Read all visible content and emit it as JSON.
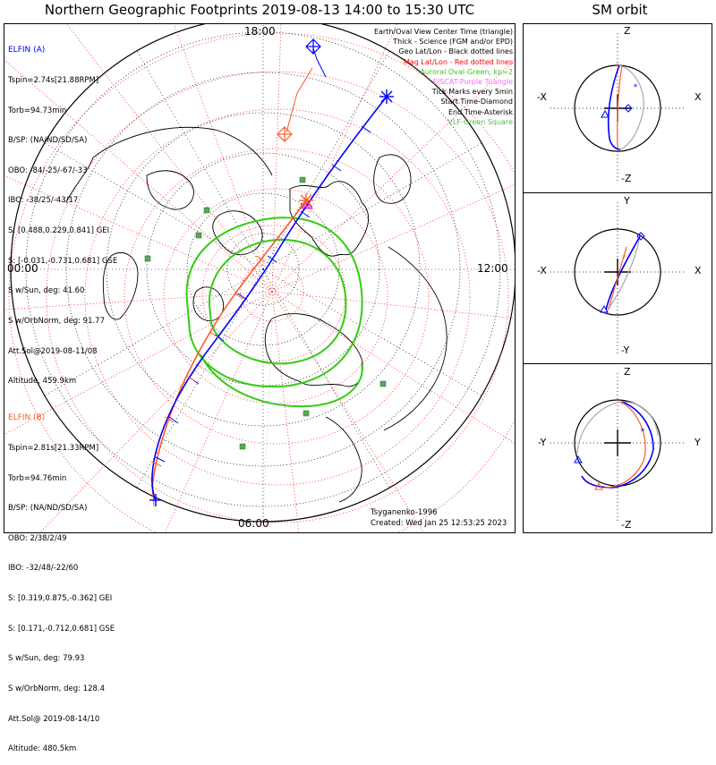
{
  "title": "Northern Geographic Footprints 2019-08-13 14:00 to 15:30 UTC",
  "sm_title": "SM orbit",
  "colors": {
    "elfin_a": "#0000ff",
    "elfin_b": "#ff5a2a",
    "aurora": "#33cc11",
    "grid": "#ff2020",
    "eiscat": "#ff66ff",
    "vlf": "#55bb55",
    "geo_grid": "#000000"
  },
  "map": {
    "time_labels": {
      "top": "18:00",
      "left": "00:00",
      "right": "12:00",
      "bottom": "06:00"
    },
    "credit": "Tsyganenko-1996",
    "created": "Created: Wed Jan 25 12:53:25 2023"
  },
  "legend": [
    {
      "text": "Earth/Oval View Center Time (triangle)",
      "color": "#000000"
    },
    {
      "text": "Thick - Science (FGM and/or EPD)",
      "color": "#000000"
    },
    {
      "text": "Geo Lat/Lon - Black dotted lines",
      "color": "#000000"
    },
    {
      "text": "Mag Lat/Lon - Red dotted lines",
      "color": "#ff0000"
    },
    {
      "text": "Auroral Oval-Green, kp=2",
      "color": "#33cc11"
    },
    {
      "text": "EISCAT-Purple Triangle",
      "color": "#ff66ff"
    },
    {
      "text": "Tick Marks every 5min",
      "color": "#000000"
    },
    {
      "text": "Start Time-Diamond",
      "color": "#000000"
    },
    {
      "text": "End Time-Asterisk",
      "color": "#000000"
    },
    {
      "text": "VLF-Green Square",
      "color": "#55bb55"
    }
  ],
  "elfin_a": {
    "name": "ELFIN (A)",
    "lines": [
      "Tspin=2.74s[21.88RPM]",
      "Torb=94.73min",
      "B/SP: (NA/ND/SD/SA)",
      "OBO: -84/-25/-67/-33",
      "IBO: -38/25/-43/17",
      "S: [0.488,0.229,0.841] GEI",
      "S: [-0.031,-0.731,0.681] GSE",
      "S w/Sun, deg: 41.60",
      "S w/OrbNorm, deg: 91.77",
      "Att.Sol@2019-08-11/08",
      "Altitude, 459.9km"
    ]
  },
  "elfin_b": {
    "name": "ELFIN (B)",
    "lines": [
      "Tspin=2.81s[21.33RPM]",
      "Torb=94.76min",
      "B/SP: (NA/ND/SD/SA)",
      "OBO: 2/38/2/49",
      "IBO: -32/48/-22/60",
      "S: [0.319,0.875,-0.362] GEI",
      "S: [0.171,-0.712,0.681] GSE",
      "S w/Sun, deg: 79.93",
      "S w/OrbNorm, deg: 128.4",
      "Att.Sol@ 2019-08-14/10",
      "Altitude: 480.5km"
    ]
  },
  "sm_panels": [
    {
      "top": "Z",
      "bottom": "-Z",
      "left": "-X",
      "right": "X"
    },
    {
      "top": "Y",
      "bottom": "-Y",
      "left": "-X",
      "right": "X"
    },
    {
      "top": "Z",
      "bottom": "-Z",
      "left": "-Y",
      "right": "Y"
    }
  ]
}
